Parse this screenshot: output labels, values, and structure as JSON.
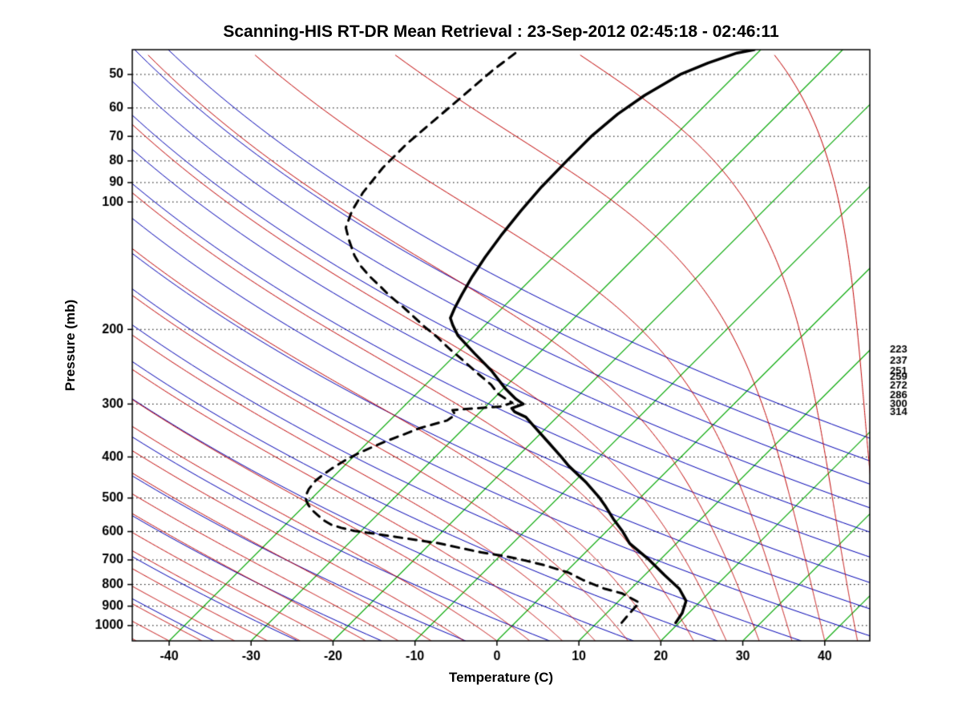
{
  "chart_data": {
    "type": "line",
    "variant": "skew-t-log-p-sounding",
    "title": "Scanning-HIS RT-DR Mean Retrieval : 23-Sep-2012 02:45:18 - 02:46:11",
    "xlabel": "Temperature (C)",
    "ylabel": "Pressure (mb)",
    "x_range": [
      -44.5,
      45.5
    ],
    "x_ticks": [
      -40,
      -30,
      -20,
      -10,
      0,
      10,
      20,
      30,
      40
    ],
    "pressure_range_mb": [
      43.7,
      1087
    ],
    "pressure_ticks_mb": [
      50,
      60,
      70,
      80,
      90,
      100,
      200,
      300,
      400,
      500,
      600,
      700,
      800,
      900,
      1000
    ],
    "right_pressure_labels_mb": [
      223,
      237,
      251,
      259,
      272,
      286,
      300,
      314
    ],
    "grid": "log-pressure dotted horizontals at tick levels",
    "legend": "none",
    "background_lines": {
      "isotherms_c": {
        "from": -40,
        "to": 40,
        "step": 10,
        "color": "#00A600"
      },
      "dry_adiabats_theta_k": {
        "from": 213,
        "to": 393,
        "step": 10,
        "color": "#0000B4"
      },
      "moist_adiabats_start_c": {
        "from": -56,
        "to": 72,
        "step": 4,
        "color": "#C00000"
      },
      "pressure_gridline_color": "#000000"
    },
    "series": [
      {
        "name": "temperature",
        "line": "solid",
        "color": "#000000",
        "points_p_t": [
          [
            985,
            19.6
          ],
          [
            934,
            19.2
          ],
          [
            875,
            18.2
          ],
          [
            819,
            15.9
          ],
          [
            760,
            12.4
          ],
          [
            700,
            8.7
          ],
          [
            640,
            4.3
          ],
          [
            600,
            2.0
          ],
          [
            560,
            -0.7
          ],
          [
            520,
            -3.4
          ],
          [
            500,
            -4.9
          ],
          [
            460,
            -8.4
          ],
          [
            420,
            -12.6
          ],
          [
            400,
            -14.6
          ],
          [
            370,
            -17.9
          ],
          [
            340,
            -21.5
          ],
          [
            322,
            -23.8
          ],
          [
            313,
            -25.8
          ],
          [
            307,
            -26.6
          ],
          [
            300,
            -25.7
          ],
          [
            292,
            -27.2
          ],
          [
            275,
            -29.9
          ],
          [
            250,
            -33.7
          ],
          [
            228,
            -37.8
          ],
          [
            207,
            -42.0
          ],
          [
            195,
            -44.0
          ],
          [
            188,
            -45.1
          ],
          [
            178,
            -45.8
          ],
          [
            165,
            -46.6
          ],
          [
            150,
            -47.5
          ],
          [
            135,
            -48.3
          ],
          [
            120,
            -49.0
          ],
          [
            105,
            -49.6
          ],
          [
            92,
            -50.0
          ],
          [
            80,
            -50.1
          ],
          [
            70,
            -50.1
          ],
          [
            62,
            -49.6
          ],
          [
            56,
            -48.6
          ],
          [
            50,
            -46.8
          ],
          [
            47,
            -44.8
          ],
          [
            44.5,
            -42.5
          ],
          [
            43.7,
            -40.8
          ]
        ]
      },
      {
        "name": "dewpoint",
        "line": "dashed",
        "color": "#000000",
        "points_p_t": [
          [
            985,
            13.0
          ],
          [
            930,
            12.8
          ],
          [
            883,
            12.7
          ],
          [
            840,
            9.5
          ],
          [
            818,
            6.7
          ],
          [
            780,
            3.0
          ],
          [
            750,
            0.4
          ],
          [
            720,
            -3.5
          ],
          [
            702,
            -6.4
          ],
          [
            685,
            -9.5
          ],
          [
            672,
            -12.7
          ],
          [
            655,
            -16.0
          ],
          [
            639,
            -19.1
          ],
          [
            628,
            -22.2
          ],
          [
            617,
            -25.2
          ],
          [
            607,
            -28.0
          ],
          [
            598,
            -30.8
          ],
          [
            588,
            -32.8
          ],
          [
            578,
            -34.4
          ],
          [
            563,
            -36.0
          ],
          [
            548,
            -37.3
          ],
          [
            533,
            -38.6
          ],
          [
            518,
            -39.7
          ],
          [
            507,
            -40.4
          ],
          [
            496,
            -41.0
          ],
          [
            476,
            -41.5
          ],
          [
            455,
            -41.7
          ],
          [
            440,
            -41.5
          ],
          [
            426,
            -41.2
          ],
          [
            408,
            -40.6
          ],
          [
            390,
            -39.7
          ],
          [
            378,
            -38.8
          ],
          [
            366,
            -37.8
          ],
          [
            354,
            -36.6
          ],
          [
            342,
            -35.4
          ],
          [
            328,
            -33.0
          ],
          [
            318,
            -32.7
          ],
          [
            310,
            -33.6
          ],
          [
            304,
            -28.2
          ],
          [
            298,
            -27.2
          ],
          [
            284,
            -30.0
          ],
          [
            270,
            -32.0
          ],
          [
            253,
            -35.2
          ],
          [
            237,
            -38.3
          ],
          [
            222,
            -41.5
          ],
          [
            208,
            -44.5
          ],
          [
            197,
            -47.2
          ],
          [
            186,
            -49.9
          ],
          [
            176,
            -52.5
          ],
          [
            167,
            -55.1
          ],
          [
            158,
            -57.6
          ],
          [
            150,
            -60.0
          ],
          [
            142,
            -62.3
          ],
          [
            134,
            -64.4
          ],
          [
            123,
            -67.0
          ],
          [
            115,
            -68.9
          ],
          [
            105,
            -70.2
          ],
          [
            95,
            -71.1
          ],
          [
            83,
            -71.7
          ],
          [
            73,
            -71.7
          ],
          [
            64,
            -71.2
          ],
          [
            56,
            -70.7
          ],
          [
            49,
            -70.2
          ],
          [
            43.7,
            -69.4
          ]
        ]
      }
    ]
  }
}
